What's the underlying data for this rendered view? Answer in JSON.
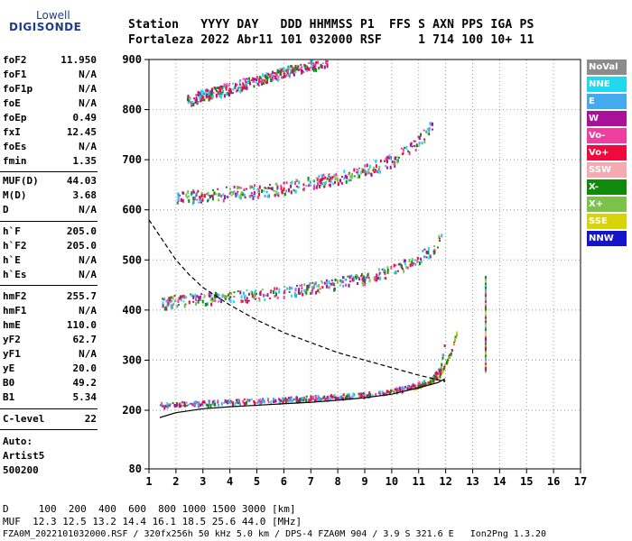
{
  "logo": {
    "line1": "Lowell",
    "line2": "DIGISONDE"
  },
  "header": {
    "row1": "Station   YYYY DAY   DDD HHMMSS P1  FFS S AXN PPS IGA PS",
    "row2": "Fortaleza 2022 Abr11 101 032000 RSF     1 714 100 10+ 11"
  },
  "params": [
    {
      "label": "foF2",
      "value": "11.950"
    },
    {
      "label": "foF1",
      "value": "N/A"
    },
    {
      "label": "foF1p",
      "value": "N/A"
    },
    {
      "label": "foE",
      "value": "N/A"
    },
    {
      "label": "foEp",
      "value": "0.49"
    },
    {
      "label": "fxI",
      "value": "12.45"
    },
    {
      "label": "foEs",
      "value": "N/A"
    },
    {
      "label": "fmin",
      "value": "1.35"
    },
    {
      "label": "MUF(D)",
      "value": "44.03"
    },
    {
      "label": "M(D)",
      "value": "3.68"
    },
    {
      "label": "D",
      "value": "N/A"
    },
    {
      "label": "h`F",
      "value": "205.0"
    },
    {
      "label": "h`F2",
      "value": "205.0"
    },
    {
      "label": "h`E",
      "value": "N/A"
    },
    {
      "label": "h`Es",
      "value": "N/A"
    },
    {
      "label": "hmF2",
      "value": "255.7"
    },
    {
      "label": "hmF1",
      "value": "N/A"
    },
    {
      "label": "hmE",
      "value": "110.0"
    },
    {
      "label": "yF2",
      "value": "62.7"
    },
    {
      "label": "yF1",
      "value": "N/A"
    },
    {
      "label": "yE",
      "value": "20.0"
    },
    {
      "label": "B0",
      "value": "49.2"
    },
    {
      "label": "B1",
      "value": "5.34"
    },
    {
      "label": "C-level",
      "value": "22"
    }
  ],
  "auto": {
    "line1": "Auto:",
    "line2": "Artist5",
    "line3": "500200"
  },
  "legend": [
    {
      "label": "NoVal",
      "color": "#8c8c8c"
    },
    {
      "label": "NNE",
      "color": "#22d8ee"
    },
    {
      "label": "E",
      "color": "#44aaee"
    },
    {
      "label": "W",
      "color": "#aa119a"
    },
    {
      "label": "Vo-",
      "color": "#ee3fa0"
    },
    {
      "label": "Vo+",
      "color": "#ee0a3c"
    },
    {
      "label": "SSW",
      "color": "#f5aab0"
    },
    {
      "label": "X-",
      "color": "#118a0c"
    },
    {
      "label": "X+",
      "color": "#7cc24a"
    },
    {
      "label": "SSE",
      "color": "#d8d40c"
    },
    {
      "label": "NNW",
      "color": "#1414cc"
    }
  ],
  "bottom": {
    "line1": "D     100  200  400  600  800 1000 1500 3000 [km]",
    "line2": "MUF  12.3 12.5 13.2 14.4 16.1 18.5 25.6 44.0 [MHz]",
    "line3": "FZA0M_2022101032000.RSF / 320fx256h 50 kHz 5.0 km / DPS-4 FZA0M 904 / 3.9 S 321.6 E   Ion2Png 1.3.20"
  },
  "chart_data": {
    "type": "scatter",
    "x_ticks": [
      1,
      2,
      3,
      4,
      5,
      6,
      7,
      8,
      9,
      10,
      11,
      12,
      13,
      14,
      15,
      16,
      17
    ],
    "y_ticks": [
      80,
      200,
      300,
      400,
      500,
      600,
      700,
      800,
      900
    ],
    "xlim": [
      1,
      17
    ],
    "ylim": [
      80,
      900
    ],
    "series": [
      {
        "name": "O-trace 1st hop",
        "x": [
          1.4,
          2,
          3,
          4,
          5,
          6,
          7,
          8,
          9,
          10,
          10.8,
          11.4,
          11.8,
          11.95
        ],
        "y": [
          212,
          214,
          216,
          218,
          220,
          223,
          226,
          229,
          233,
          240,
          250,
          262,
          285,
          340
        ]
      },
      {
        "name": "X-trace 1st hop",
        "x": [
          10.8,
          11.4,
          11.8,
          12.2,
          12.4
        ],
        "y": [
          245,
          258,
          275,
          320,
          360
        ]
      },
      {
        "name": "2nd hop",
        "x": [
          1.4,
          2,
          3,
          4,
          5,
          6,
          7,
          8,
          9,
          10,
          10.8,
          11.6,
          11.9
        ],
        "y": [
          415,
          420,
          425,
          428,
          432,
          438,
          445,
          455,
          465,
          480,
          500,
          525,
          560
        ]
      },
      {
        "name": "3rd hop",
        "x": [
          2,
          3,
          4,
          5,
          6,
          7,
          8,
          9,
          10,
          10.8,
          11.5
        ],
        "y": [
          625,
          630,
          635,
          640,
          645,
          655,
          665,
          680,
          700,
          730,
          770
        ]
      },
      {
        "name": "4th hop",
        "x": [
          2.4,
          3,
          4,
          5,
          6,
          7,
          7.6
        ],
        "y": [
          820,
          830,
          845,
          860,
          875,
          890,
          900
        ]
      },
      {
        "name": "True height profile",
        "x": [
          1.4,
          2,
          3,
          4,
          5,
          6,
          7,
          8,
          9,
          10,
          11,
          11.7,
          11.95,
          11.95
        ],
        "y": [
          185,
          195,
          203,
          207,
          210,
          213,
          216,
          220,
          225,
          232,
          245,
          255,
          262,
          255.7
        ]
      },
      {
        "name": "MUF(D) curve",
        "x": [
          1,
          1.5,
          2,
          2.5,
          3,
          4,
          5,
          6,
          7,
          8,
          9,
          10,
          11,
          11.95
        ],
        "y": [
          580,
          540,
          500,
          470,
          445,
          410,
          380,
          355,
          335,
          315,
          300,
          285,
          270,
          258
        ]
      }
    ],
    "muf_d": 44.03,
    "fof2": 11.95,
    "hmf2": 255.7
  }
}
